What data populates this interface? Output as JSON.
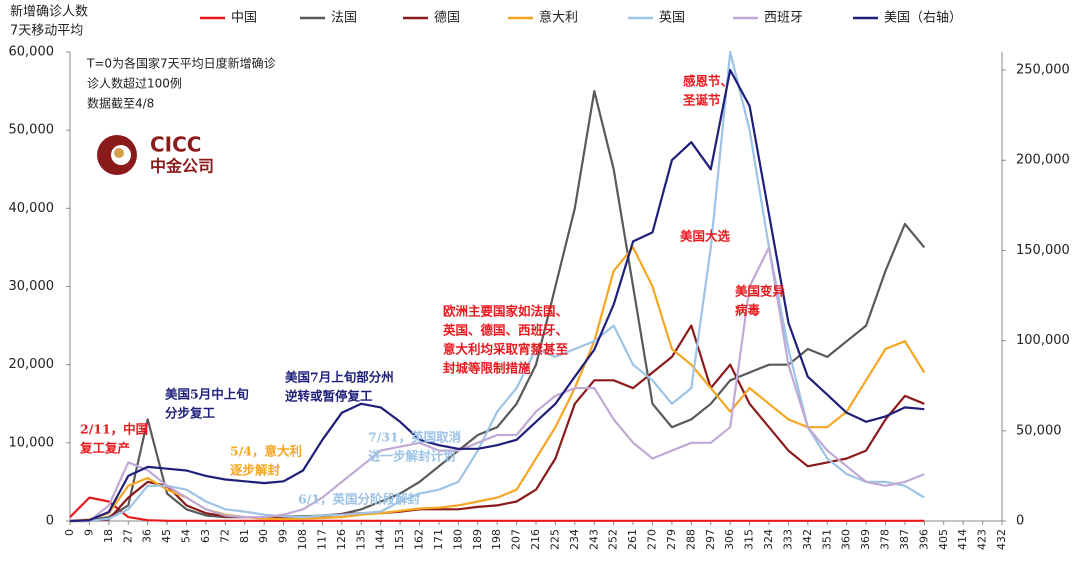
{
  "chart_data": {
    "type": "line",
    "y_label": [
      "新增确诊人数",
      "7天移动平均"
    ],
    "note": [
      "T=0为各国家7天平均日度新增确诊",
      "诊人数超过100例",
      "数据截至4/8"
    ],
    "logo": [
      "CICC",
      "中金公司"
    ],
    "x": [
      0,
      9,
      18,
      27,
      36,
      45,
      54,
      63,
      72,
      81,
      90,
      99,
      108,
      117,
      126,
      135,
      144,
      153,
      162,
      171,
      180,
      189,
      198,
      207,
      216,
      225,
      234,
      243,
      252,
      261,
      270,
      279,
      288,
      297,
      306,
      315,
      324,
      333,
      342,
      351,
      360,
      369,
      378,
      387,
      396
    ],
    "xlim": [
      0,
      432
    ],
    "xticks": [
      0,
      9,
      18,
      27,
      36,
      45,
      54,
      63,
      72,
      81,
      90,
      99,
      108,
      117,
      126,
      135,
      144,
      153,
      162,
      171,
      180,
      189,
      198,
      207,
      216,
      225,
      234,
      243,
      252,
      261,
      270,
      279,
      288,
      297,
      306,
      315,
      324,
      333,
      342,
      351,
      360,
      369,
      378,
      387,
      396,
      405,
      414,
      423,
      432
    ],
    "ylim": [
      0,
      60000
    ],
    "yticks": [
      0,
      {
        "value": 10000,
        "label": "10,000"
      },
      {
        "value": 20000,
        "label": "20,000"
      },
      {
        "value": 30000,
        "label": "30,000"
      },
      {
        "value": 40000,
        "label": "40,000"
      },
      {
        "value": 50000,
        "label": "50,000"
      },
      {
        "value": 60000,
        "label": "60,000"
      }
    ],
    "y2lim": [
      0,
      260000
    ],
    "y2ticks": [
      0,
      {
        "value": 50000,
        "label": "50,000"
      },
      {
        "value": 100000,
        "label": "100,000"
      },
      {
        "value": 150000,
        "label": "150,000"
      },
      {
        "value": 200000,
        "label": "200,000"
      },
      {
        "value": 250000,
        "label": "250,000"
      }
    ],
    "series": [
      {
        "name": "中国",
        "color": "#e8191e",
        "values": [
          500,
          3000,
          2500,
          500,
          100,
          30,
          20,
          20,
          20,
          20,
          20,
          20,
          20,
          20,
          20,
          20,
          20,
          20,
          20,
          20,
          20,
          20,
          20,
          20,
          20,
          20,
          20,
          20,
          20,
          20,
          20,
          20,
          20,
          20,
          20,
          20,
          20,
          20,
          20,
          20,
          20,
          20,
          20,
          20,
          20
        ]
      },
      {
        "name": "法国",
        "color": "#595959",
        "values": [
          0,
          100,
          500,
          2000,
          13000,
          3500,
          1500,
          700,
          500,
          500,
          500,
          600,
          600,
          700,
          900,
          1500,
          2500,
          3500,
          5000,
          7000,
          9000,
          11000,
          12000,
          15000,
          20000,
          30000,
          40000,
          55000,
          45000,
          30000,
          15000,
          12000,
          13000,
          15000,
          18000,
          19000,
          20000,
          20000,
          22000,
          21000,
          23000,
          25000,
          32000,
          38000,
          35000
        ]
      },
      {
        "name": "德国",
        "color": "#8b1a1a",
        "values": [
          0,
          0,
          200,
          3000,
          5000,
          4500,
          2000,
          1000,
          600,
          500,
          400,
          400,
          400,
          600,
          900,
          1000,
          1000,
          1200,
          1500,
          1500,
          1500,
          1800,
          2000,
          2500,
          4000,
          8000,
          15000,
          18000,
          18000,
          17000,
          19000,
          21000,
          25000,
          17000,
          20000,
          15000,
          12000,
          9000,
          7000,
          7500,
          8000,
          9000,
          13000,
          16000,
          15000
        ]
      },
      {
        "name": "意大利",
        "color": "#f5a623",
        "values": [
          0,
          200,
          1000,
          4500,
          5500,
          4000,
          3000,
          1500,
          800,
          500,
          300,
          250,
          300,
          400,
          500,
          800,
          1000,
          1300,
          1600,
          1700,
          2000,
          2500,
          3000,
          4000,
          8000,
          12000,
          17000,
          23000,
          32000,
          35000,
          30000,
          22000,
          20000,
          17000,
          14000,
          17000,
          15000,
          13000,
          12000,
          12000,
          14000,
          18000,
          22000,
          23000,
          19000
        ]
      },
      {
        "name": "英国",
        "color": "#9dc3e6",
        "values": [
          0,
          0,
          300,
          1500,
          4500,
          4500,
          4000,
          2500,
          1500,
          1200,
          800,
          600,
          500,
          700,
          800,
          1000,
          1200,
          2500,
          3500,
          4000,
          5000,
          9000,
          14000,
          17000,
          22000,
          21000,
          22000,
          23000,
          25000,
          20000,
          18000,
          15000,
          17000,
          35000,
          60000,
          50000,
          35000,
          22000,
          12000,
          8000,
          6000,
          5000,
          5000,
          4500,
          3000
        ]
      },
      {
        "name": "西班牙",
        "color": "#c0a9d4",
        "values": [
          0,
          0,
          2000,
          7500,
          6500,
          4500,
          3000,
          1500,
          700,
          500,
          500,
          800,
          1500,
          3000,
          5000,
          7000,
          9000,
          9500,
          10000,
          9000,
          9000,
          10000,
          11000,
          11000,
          14000,
          16000,
          17000,
          17000,
          13000,
          10000,
          8000,
          9000,
          10000,
          10000,
          12000,
          30000,
          35000,
          20000,
          12000,
          9000,
          7000,
          5000,
          4500,
          5000,
          6000
        ]
      },
      {
        "name": "美国（右轴）",
        "color": "#1f1f7a",
        "axis": "y2",
        "values": [
          0,
          500,
          5000,
          25000,
          30000,
          29000,
          28000,
          25000,
          23000,
          22000,
          21000,
          22000,
          28000,
          45000,
          60000,
          65000,
          63000,
          55000,
          45000,
          42000,
          40000,
          40000,
          42000,
          45000,
          55000,
          65000,
          80000,
          95000,
          120000,
          155000,
          160000,
          200000,
          210000,
          195000,
          250000,
          230000,
          170000,
          110000,
          80000,
          70000,
          60000,
          55000,
          58000,
          63000,
          62000
        ]
      }
    ],
    "annotations": [
      {
        "lines": [
          "2/11，中国",
          "复工复产"
        ],
        "color": "#e8191e"
      },
      {
        "lines": [
          "美国5月中上旬",
          "分步复工"
        ],
        "color": "#1f1f7a"
      },
      {
        "lines": [
          "5/4，意大利",
          "逐步解封"
        ],
        "color": "#f5a623"
      },
      {
        "lines": [
          "6/1，英国分阶段解封"
        ],
        "color": "#9dc3e6"
      },
      {
        "lines": [
          "美国7月上旬部分州",
          "逆转或暂停复工"
        ],
        "color": "#1f1f7a"
      },
      {
        "lines": [
          "7/31，英国取消",
          "进一步解封计划"
        ],
        "color": "#9dc3e6"
      },
      {
        "lines": [
          "欧洲主要国家如法国、",
          "英国、德国、西班牙、",
          "意大利均采取宵禁甚至",
          "封城等限制措施"
        ],
        "color": "#e8191e"
      },
      {
        "lines": [
          "感恩节、",
          "圣诞节"
        ],
        "color": "#e8191e"
      },
      {
        "lines": [
          "美国大选"
        ],
        "color": "#e8191e"
      },
      {
        "lines": [
          "美国变异",
          "病毒"
        ],
        "color": "#e8191e"
      }
    ]
  }
}
